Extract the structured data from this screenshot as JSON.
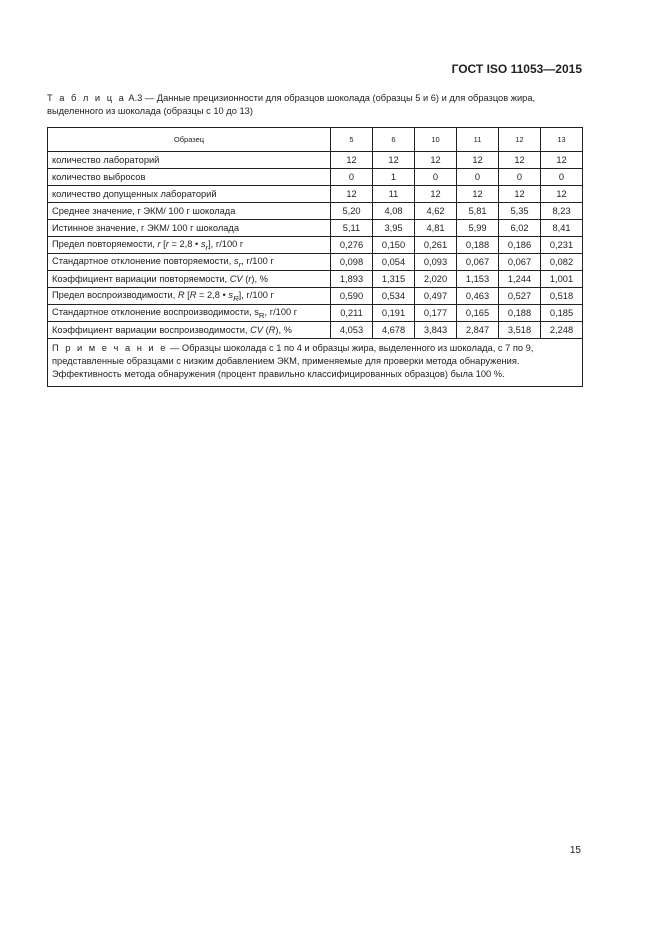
{
  "header": "ГОСТ ISO 11053—2015",
  "caption": {
    "word": "Т а б л и ц а",
    "text": " А.3 — Данные прецизионности для образцов шоколада (образцы 5 и 6) и для образцов жира, выделенного из шоколада (образцы с 10 до 13)"
  },
  "table": {
    "header": [
      "Образец",
      "5",
      "6",
      "10",
      "11",
      "12",
      "13"
    ],
    "rows": [
      {
        "label": [
          {
            "t": "количество лабораторий"
          }
        ],
        "values": [
          "12",
          "12",
          "12",
          "12",
          "12",
          "12"
        ]
      },
      {
        "label": [
          {
            "t": "количество выбросов"
          }
        ],
        "values": [
          "0",
          "1",
          "0",
          "0",
          "0",
          "0"
        ]
      },
      {
        "label": [
          {
            "t": "количество допущенных лабораторий"
          }
        ],
        "values": [
          "12",
          "11",
          "12",
          "12",
          "12",
          "12"
        ]
      },
      {
        "label": [
          {
            "t": "Среднее значение, г ЭКМ/ 100 г шоколада"
          }
        ],
        "values": [
          "5,20",
          "4,08",
          "4,62",
          "5,81",
          "5,35",
          "8,23"
        ]
      },
      {
        "label": [
          {
            "t": "Истинное значение, г ЭКМ/ 100 г шоколада"
          }
        ],
        "values": [
          "5,11",
          "3,95",
          "4,81",
          "5,99",
          "6,02",
          "8,41"
        ]
      },
      {
        "label": [
          {
            "t": "Предел повторяемости, "
          },
          {
            "t": "r",
            "i": true
          },
          {
            "t": " ["
          },
          {
            "t": "r",
            "i": true
          },
          {
            "t": " = 2,8 • "
          },
          {
            "t": "s",
            "i": true
          },
          {
            "t": "r",
            "i": true,
            "sub": true
          },
          {
            "t": "], г/100 г"
          }
        ],
        "values": [
          "0,276",
          "0,150",
          "0,261",
          "0,188",
          "0,186",
          "0,231"
        ]
      },
      {
        "label": [
          {
            "t": "Стандартное отклонение повторяемости, "
          },
          {
            "t": "s",
            "i": true
          },
          {
            "t": "r",
            "i": true,
            "sub": true
          },
          {
            "t": ", г/100 г"
          }
        ],
        "values": [
          "0,098",
          "0,054",
          "0,093",
          "0,067",
          "0,067",
          "0,082"
        ]
      },
      {
        "label": [
          {
            "t": "Коэффициент вариации повторяемости, "
          },
          {
            "t": "CV",
            "i": true
          },
          {
            "t": " ("
          },
          {
            "t": "r",
            "i": true
          },
          {
            "t": "), %"
          }
        ],
        "values": [
          "1,893",
          "1,315",
          "2,020",
          "1,153",
          "1,244",
          "1,001"
        ]
      },
      {
        "label": [
          {
            "t": "Предел воспроизводимости, "
          },
          {
            "t": "R",
            "i": true
          },
          {
            "t": " ["
          },
          {
            "t": "R",
            "i": true
          },
          {
            "t": " = 2,8 • "
          },
          {
            "t": "s",
            "i": true
          },
          {
            "t": "R",
            "i": true,
            "sub": true
          },
          {
            "t": "], г/100 г"
          }
        ],
        "values": [
          "0,590",
          "0,534",
          "0,497",
          "0,463",
          "0,527",
          "0,518"
        ]
      },
      {
        "label": [
          {
            "t": "Стандартное отклонение воспроизводимости, s"
          },
          {
            "t": "R",
            "sub": true
          },
          {
            "t": ", г/100 г"
          }
        ],
        "values": [
          "0,211",
          "0,191",
          "0,177",
          "0,165",
          "0,188",
          "0,185"
        ]
      },
      {
        "label": [
          {
            "t": "Коэффициент вариации воспроизводимости, "
          },
          {
            "t": "CV",
            "i": true
          },
          {
            "t": " ("
          },
          {
            "t": "R",
            "i": true
          },
          {
            "t": "), %"
          }
        ],
        "values": [
          "4,053",
          "4,678",
          "3,843",
          "2,847",
          "3,518",
          "2,248"
        ]
      }
    ],
    "note": {
      "word": "П р и м е ч а н и е",
      "text": " — Образцы шоколада с 1 по 4 и образцы жира, выделенного из шоколада, с 7 по 9, представленные образцами с низким добавлением ЭКМ, применяемые для проверки метода обнаружения. Эффективность метода обнаружения (процент правильно классифицированных образцов) была 100 %."
    }
  },
  "page_number": "15"
}
